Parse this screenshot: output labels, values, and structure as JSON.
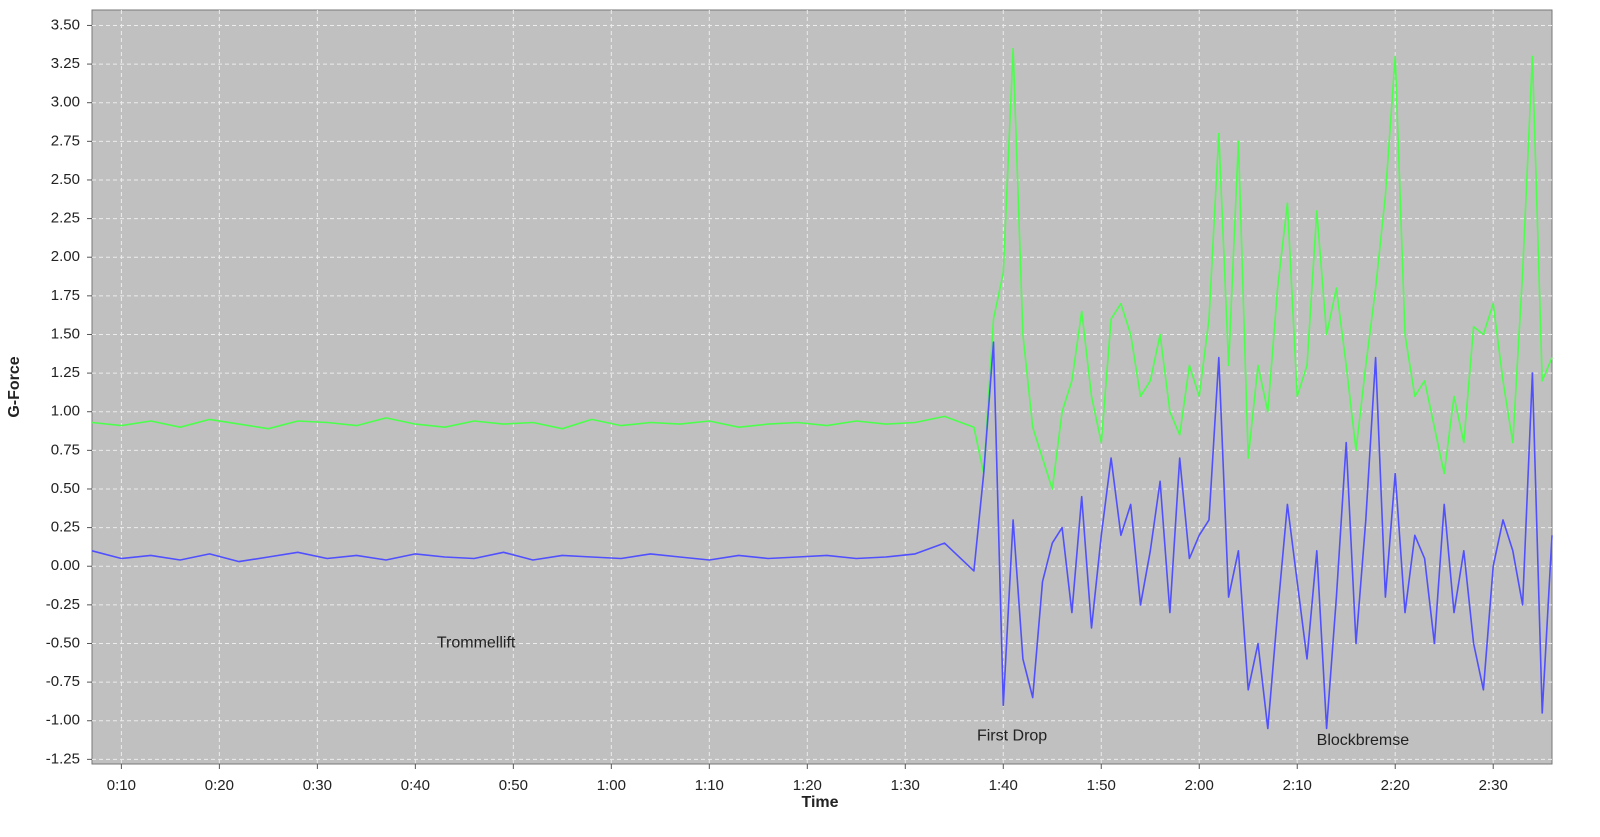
{
  "chart_data": {
    "type": "line",
    "xlabel": "Time",
    "ylabel": "G-Force",
    "x": [
      7,
      10,
      13,
      16,
      19,
      22,
      25,
      28,
      31,
      34,
      37,
      40,
      43,
      46,
      49,
      52,
      55,
      58,
      61,
      64,
      67,
      70,
      73,
      76,
      79,
      82,
      85,
      88,
      91,
      94,
      97,
      98,
      99,
      100,
      101,
      102,
      103,
      104,
      105,
      106,
      107,
      108,
      109,
      110,
      111,
      112,
      113,
      114,
      115,
      116,
      117,
      118,
      119,
      120,
      121,
      122,
      123,
      124,
      125,
      126,
      127,
      128,
      129,
      130,
      131,
      132,
      133,
      134,
      135,
      136,
      137,
      138,
      139,
      140,
      141,
      142,
      143,
      144,
      145,
      146,
      147,
      148,
      149,
      150,
      151,
      152,
      153,
      154,
      155,
      156
    ],
    "series": [
      {
        "color": "#4cff4c",
        "values": [
          0.93,
          0.91,
          0.94,
          0.9,
          0.95,
          0.92,
          0.89,
          0.94,
          0.93,
          0.91,
          0.96,
          0.92,
          0.9,
          0.94,
          0.92,
          0.93,
          0.89,
          0.95,
          0.91,
          0.93,
          0.92,
          0.94,
          0.9,
          0.92,
          0.93,
          0.91,
          0.94,
          0.92,
          0.93,
          0.97,
          0.9,
          0.6,
          1.6,
          1.9,
          3.35,
          1.5,
          0.9,
          0.7,
          0.5,
          1.0,
          1.2,
          1.65,
          1.1,
          0.8,
          1.6,
          1.7,
          1.5,
          1.1,
          1.2,
          1.5,
          1.0,
          0.85,
          1.3,
          1.1,
          1.6,
          2.8,
          1.3,
          2.75,
          0.7,
          1.3,
          1.0,
          1.8,
          2.35,
          1.1,
          1.3,
          2.3,
          1.5,
          1.8,
          1.3,
          0.75,
          1.3,
          1.8,
          2.4,
          3.3,
          1.5,
          1.1,
          1.2,
          0.9,
          0.6,
          1.1,
          0.8,
          1.55,
          1.5,
          1.7,
          1.2,
          0.8,
          1.9,
          3.3,
          1.2,
          1.35
        ]
      },
      {
        "color": "#5050ff",
        "values": [
          0.1,
          0.05,
          0.07,
          0.04,
          0.08,
          0.03,
          0.06,
          0.09,
          0.05,
          0.07,
          0.04,
          0.08,
          0.06,
          0.05,
          0.09,
          0.04,
          0.07,
          0.06,
          0.05,
          0.08,
          0.06,
          0.04,
          0.07,
          0.05,
          0.06,
          0.07,
          0.05,
          0.06,
          0.08,
          0.15,
          -0.03,
          0.6,
          1.45,
          -0.9,
          0.3,
          -0.6,
          -0.85,
          -0.1,
          0.15,
          0.25,
          -0.3,
          0.45,
          -0.4,
          0.2,
          0.7,
          0.2,
          0.4,
          -0.25,
          0.1,
          0.55,
          -0.3,
          0.7,
          0.05,
          0.2,
          0.3,
          1.35,
          -0.2,
          0.1,
          -0.8,
          -0.5,
          -1.05,
          -0.3,
          0.4,
          -0.1,
          -0.6,
          0.1,
          -1.05,
          -0.2,
          0.8,
          -0.5,
          0.3,
          1.35,
          -0.2,
          0.6,
          -0.3,
          0.2,
          0.05,
          -0.5,
          0.4,
          -0.3,
          0.1,
          -0.5,
          -0.8,
          0.0,
          0.3,
          0.1,
          -0.25,
          1.25,
          -0.95,
          0.2
        ]
      }
    ],
    "xlim": [
      7,
      156
    ],
    "ylim": [
      -1.28,
      3.6
    ],
    "xticks": [
      {
        "value": 10,
        "label": "0:10"
      },
      {
        "value": 20,
        "label": "0:20"
      },
      {
        "value": 30,
        "label": "0:30"
      },
      {
        "value": 40,
        "label": "0:40"
      },
      {
        "value": 50,
        "label": "0:50"
      },
      {
        "value": 60,
        "label": "1:00"
      },
      {
        "value": 70,
        "label": "1:10"
      },
      {
        "value": 80,
        "label": "1:20"
      },
      {
        "value": 90,
        "label": "1:30"
      },
      {
        "value": 100,
        "label": "1:40"
      },
      {
        "value": 110,
        "label": "1:50"
      },
      {
        "value": 120,
        "label": "2:00"
      },
      {
        "value": 130,
        "label": "2:10"
      },
      {
        "value": 140,
        "label": "2:20"
      },
      {
        "value": 150,
        "label": "2:30"
      }
    ],
    "yticks": [
      {
        "value": 3.5,
        "label": "3.50"
      },
      {
        "value": 3.25,
        "label": "3.25"
      },
      {
        "value": 3,
        "label": "3.00"
      },
      {
        "value": 2.75,
        "label": "2.75"
      },
      {
        "value": 2.5,
        "label": "2.50"
      },
      {
        "value": 2.25,
        "label": "2.25"
      },
      {
        "value": 2,
        "label": "2.00"
      },
      {
        "value": 1.75,
        "label": "1.75"
      },
      {
        "value": 1.5,
        "label": "1.50"
      },
      {
        "value": 1.25,
        "label": "1.25"
      },
      {
        "value": 1,
        "label": "1.00"
      },
      {
        "value": 0.75,
        "label": "0.75"
      },
      {
        "value": 0.5,
        "label": "0.50"
      },
      {
        "value": 0.25,
        "label": "0.25"
      },
      {
        "value": 0,
        "label": "0.00"
      },
      {
        "value": -0.25,
        "label": "-0.25"
      },
      {
        "value": -0.5,
        "label": "-0.50"
      },
      {
        "value": -0.75,
        "label": "-0.75"
      },
      {
        "value": -1,
        "label": "-1.00"
      },
      {
        "value": -1.25,
        "label": "-1.25"
      }
    ],
    "grid": true,
    "annotations": [
      {
        "text": "Trommellift",
        "x": 46.2,
        "y": -0.5
      },
      {
        "text": "First Drop",
        "x": 100.9,
        "y": -1.1
      },
      {
        "text": "Blockbremse",
        "x": 136.7,
        "y": -1.13
      }
    ]
  }
}
